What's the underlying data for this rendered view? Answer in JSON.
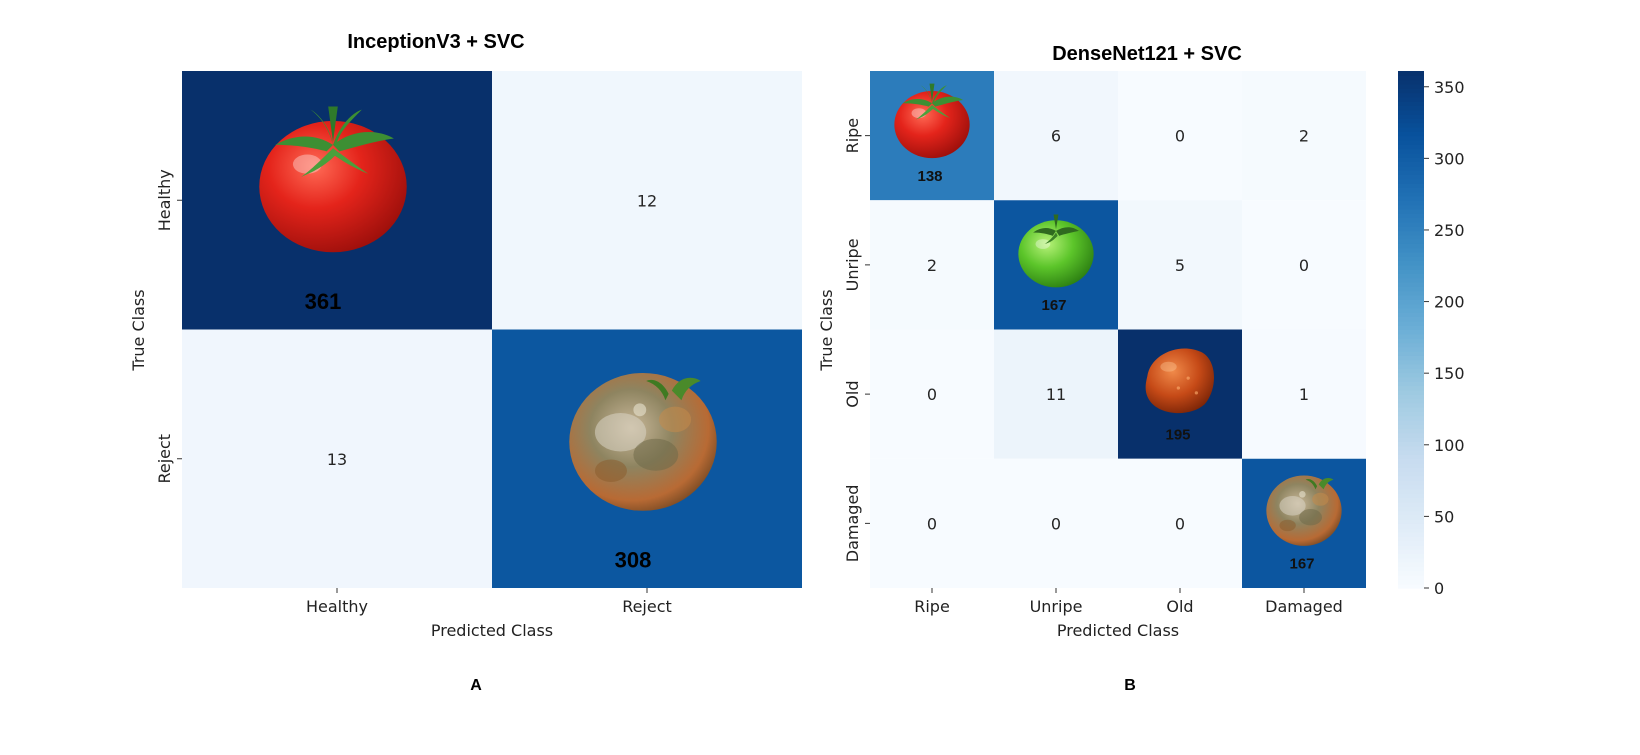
{
  "chart_data": [
    {
      "type": "heatmap",
      "panel_label": "A",
      "title": "InceptionV3 + SVC",
      "xlabel": "Predicted Class",
      "ylabel": "True Class",
      "x_categories": [
        "Healthy",
        "Reject"
      ],
      "y_categories": [
        "Healthy",
        "Reject"
      ],
      "matrix": [
        [
          361,
          12
        ],
        [
          13,
          308
        ]
      ],
      "cell_images": [
        "tomato-red-icon",
        "tomato-rotten-icon"
      ],
      "colormap": "Blues"
    },
    {
      "type": "heatmap",
      "panel_label": "B",
      "title": "DenseNet121 + SVC",
      "xlabel": "Predicted Class",
      "ylabel": "True Class",
      "x_categories": [
        "Ripe",
        "Unripe",
        "Old",
        "Damaged"
      ],
      "y_categories": [
        "Ripe",
        "Unripe",
        "Old",
        "Damaged"
      ],
      "matrix": [
        [
          138,
          6,
          0,
          2
        ],
        [
          2,
          167,
          5,
          0
        ],
        [
          0,
          11,
          195,
          1
        ],
        [
          0,
          0,
          0,
          167
        ]
      ],
      "cell_images": [
        "tomato-red-icon",
        "tomato-green-icon",
        "tomato-old-icon",
        "tomato-rotten-icon"
      ],
      "colormap": "Blues",
      "colorbar": {
        "range": [
          0,
          361
        ],
        "ticks": [
          0,
          50,
          100,
          150,
          200,
          250,
          300,
          350
        ]
      }
    }
  ],
  "colors": {
    "blues_scale": [
      "#f7fbff",
      "#deebf7",
      "#c6dbef",
      "#9ecae1",
      "#6baed6",
      "#4292c6",
      "#2171b5",
      "#08519c",
      "#08306b"
    ]
  }
}
